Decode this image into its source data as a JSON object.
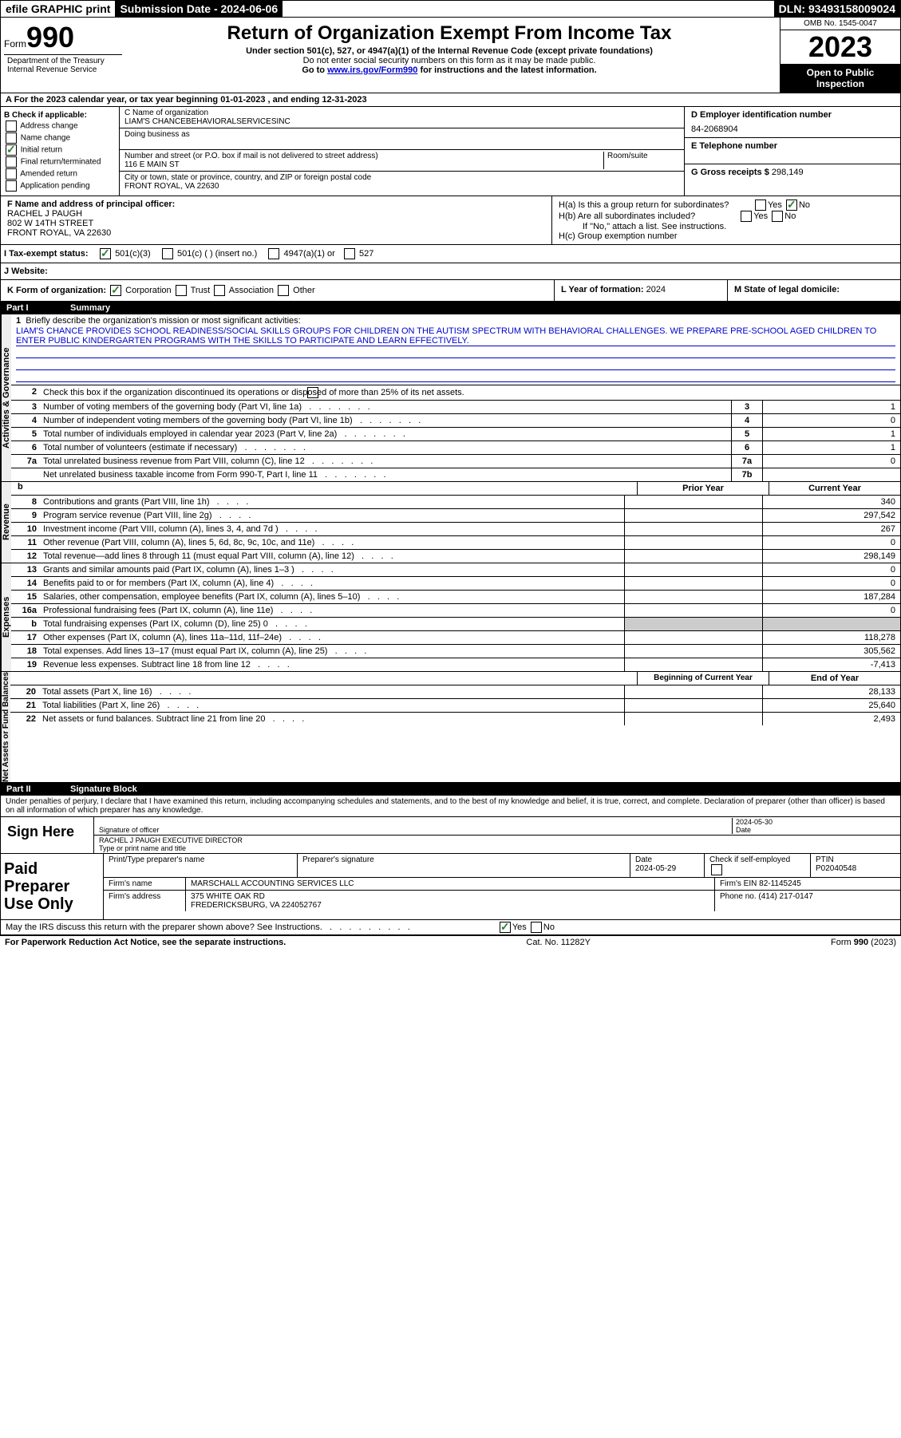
{
  "top": {
    "efile": "efile GRAPHIC print",
    "sub_label": "Submission Date - 2024-06-06",
    "dln": "DLN: 93493158009024"
  },
  "header": {
    "form_word": "Form",
    "form_num": "990",
    "title": "Return of Organization Exempt From Income Tax",
    "sub1": "Under section 501(c), 527, or 4947(a)(1) of the Internal Revenue Code (except private foundations)",
    "sub2": "Do not enter social security numbers on this form as it may be made public.",
    "sub3_pre": "Go to ",
    "sub3_link": "www.irs.gov/Form990",
    "sub3_post": " for instructions and the latest information.",
    "dept": "Department of the Treasury\nInternal Revenue Service",
    "omb": "OMB No. 1545-0047",
    "year": "2023",
    "pub": "Open to Public Inspection"
  },
  "lineA": "A For the 2023 calendar year, or tax year beginning 01-01-2023   , and ending 12-31-2023",
  "colB": {
    "hdr": "B Check if applicable:",
    "items": [
      "Address change",
      "Name change",
      "Initial return",
      "Final return/terminated",
      "Amended return",
      "Application pending"
    ],
    "checked_idx": 2
  },
  "colC": {
    "name_lbl": "C Name of organization",
    "name": "LIAM'S CHANCEBEHAVIORALSERVICESINC",
    "dba_lbl": "Doing business as",
    "addr_lbl": "Number and street (or P.O. box if mail is not delivered to street address)",
    "room_lbl": "Room/suite",
    "addr": "116 E MAIN ST",
    "city_lbl": "City or town, state or province, country, and ZIP or foreign postal code",
    "city": "FRONT ROYAL, VA  22630"
  },
  "colDE": {
    "d_lbl": "D Employer identification number",
    "ein": "84-2068904",
    "e_lbl": "E Telephone number",
    "g_lbl": "G Gross receipts $",
    "g_val": "298,149"
  },
  "rowF": {
    "lbl": "F  Name and address of principal officer:",
    "l1": "RACHEL J PAUGH",
    "l2": "802 W 14TH STREET",
    "l3": "FRONT ROYAL, VA  22630"
  },
  "rowH": {
    "a": "H(a)  Is this a group return for subordinates?",
    "a_no": "No",
    "b": "H(b)  Are all subordinates included?",
    "b_note": "If \"No,\" attach a list. See instructions.",
    "c": "H(c)  Group exemption number"
  },
  "rowI": {
    "lbl": "I   Tax-exempt status:",
    "o1": "501(c)(3)",
    "o2": "501(c) (  ) (insert no.)",
    "o3": "4947(a)(1) or",
    "o4": "527"
  },
  "rowJ": {
    "lbl": "J   Website:"
  },
  "rowK": {
    "lbl": "K Form of organization:",
    "o1": "Corporation",
    "o2": "Trust",
    "o3": "Association",
    "o4": "Other"
  },
  "rowL": {
    "lbl": "L Year of formation:",
    "val": "2024"
  },
  "rowM": {
    "lbl": "M State of legal domicile:"
  },
  "part1": {
    "hdr": "Part I",
    "title": "Summary"
  },
  "summary": {
    "q1": "Briefly describe the organization's mission or most significant activities:",
    "mission": "LIAM'S CHANCE PROVIDES SCHOOL READINESS/SOCIAL SKILLS GROUPS FOR CHILDREN ON THE AUTISM SPECTRUM WITH BEHAVIORAL CHALLENGES. WE PREPARE PRE-SCHOOL AGED CHILDREN TO ENTER PUBLIC KINDERGARTEN PROGRAMS WITH THE SKILLS TO PARTICIPATE AND LEARN EFFECTIVELY.",
    "q2": "Check this box      if the organization discontinued its operations or disposed of more than 25% of its net assets.",
    "rows_gov": [
      {
        "n": "3",
        "t": "Number of voting members of the governing body (Part VI, line 1a)",
        "b": "3",
        "v": "1"
      },
      {
        "n": "4",
        "t": "Number of independent voting members of the governing body (Part VI, line 1b)",
        "b": "4",
        "v": "0"
      },
      {
        "n": "5",
        "t": "Total number of individuals employed in calendar year 2023 (Part V, line 2a)",
        "b": "5",
        "v": "1"
      },
      {
        "n": "6",
        "t": "Total number of volunteers (estimate if necessary)",
        "b": "6",
        "v": "1"
      },
      {
        "n": "7a",
        "t": "Total unrelated business revenue from Part VIII, column (C), line 12",
        "b": "7a",
        "v": "0"
      },
      {
        "n": "",
        "t": "Net unrelated business taxable income from Form 990-T, Part I, line 11",
        "b": "7b",
        "v": ""
      }
    ],
    "hdr_prior": "Prior Year",
    "hdr_curr": "Current Year",
    "rows_rev": [
      {
        "n": "8",
        "t": "Contributions and grants (Part VIII, line 1h)",
        "p": "",
        "c": "340"
      },
      {
        "n": "9",
        "t": "Program service revenue (Part VIII, line 2g)",
        "p": "",
        "c": "297,542"
      },
      {
        "n": "10",
        "t": "Investment income (Part VIII, column (A), lines 3, 4, and 7d )",
        "p": "",
        "c": "267"
      },
      {
        "n": "11",
        "t": "Other revenue (Part VIII, column (A), lines 5, 6d, 8c, 9c, 10c, and 11e)",
        "p": "",
        "c": "0"
      },
      {
        "n": "12",
        "t": "Total revenue—add lines 8 through 11 (must equal Part VIII, column (A), line 12)",
        "p": "",
        "c": "298,149"
      }
    ],
    "rows_exp": [
      {
        "n": "13",
        "t": "Grants and similar amounts paid (Part IX, column (A), lines 1–3 )",
        "p": "",
        "c": "0"
      },
      {
        "n": "14",
        "t": "Benefits paid to or for members (Part IX, column (A), line 4)",
        "p": "",
        "c": "0"
      },
      {
        "n": "15",
        "t": "Salaries, other compensation, employee benefits (Part IX, column (A), lines 5–10)",
        "p": "",
        "c": "187,284"
      },
      {
        "n": "16a",
        "t": "Professional fundraising fees (Part IX, column (A), line 11e)",
        "p": "",
        "c": "0"
      },
      {
        "n": "b",
        "t": "Total fundraising expenses (Part IX, column (D), line 25) 0",
        "p": "shaded",
        "c": "shaded"
      },
      {
        "n": "17",
        "t": "Other expenses (Part IX, column (A), lines 11a–11d, 11f–24e)",
        "p": "",
        "c": "118,278"
      },
      {
        "n": "18",
        "t": "Total expenses. Add lines 13–17 (must equal Part IX, column (A), line 25)",
        "p": "",
        "c": "305,562"
      },
      {
        "n": "19",
        "t": "Revenue less expenses. Subtract line 18 from line 12",
        "p": "",
        "c": "-7,413"
      }
    ],
    "hdr_begin": "Beginning of Current Year",
    "hdr_end": "End of Year",
    "rows_net": [
      {
        "n": "20",
        "t": "Total assets (Part X, line 16)",
        "p": "",
        "c": "28,133"
      },
      {
        "n": "21",
        "t": "Total liabilities (Part X, line 26)",
        "p": "",
        "c": "25,640"
      },
      {
        "n": "22",
        "t": "Net assets or fund balances. Subtract line 21 from line 20",
        "p": "",
        "c": "2,493"
      }
    ]
  },
  "vlabels": {
    "gov": "Activities & Governance",
    "rev": "Revenue",
    "exp": "Expenses",
    "net": "Net Assets or Fund Balances"
  },
  "part2": {
    "hdr": "Part II",
    "title": "Signature Block"
  },
  "perjury": "Under penalties of perjury, I declare that I have examined this return, including accompanying schedules and statements, and to the best of my knowledge and belief, it is true, correct, and complete. Declaration of preparer (other than officer) is based on all information of which preparer has any knowledge.",
  "sign": {
    "left": "Sign Here",
    "sig_lbl": "Signature of officer",
    "date_lbl": "Date",
    "date": "2024-05-30",
    "name": "RACHEL J PAUGH EXECUTIVE DIRECTOR",
    "name_lbl": "Type or print name and title"
  },
  "prep": {
    "left": "Paid Preparer Use Only",
    "pt_lbl": "Print/Type preparer's name",
    "ps_lbl": "Preparer's signature",
    "pd_lbl": "Date",
    "pd": "2024-05-29",
    "ck_lbl": "Check        if self-employed",
    "ptin_lbl": "PTIN",
    "ptin": "P02040548",
    "firm_lbl": "Firm's name",
    "firm": "MARSCHALL ACCOUNTING SERVICES LLC",
    "ein_lbl": "Firm's EIN",
    "ein": "82-1145245",
    "addr_lbl": "Firm's address",
    "addr1": "375 WHITE OAK RD",
    "addr2": "FREDERICKSBURG, VA  224052767",
    "ph_lbl": "Phone no.",
    "ph": "(414) 217-0147"
  },
  "discuss": "May the IRS discuss this return with the preparer shown above? See Instructions.",
  "footer": {
    "l": "For Paperwork Reduction Act Notice, see the separate instructions.",
    "m": "Cat. No. 11282Y",
    "r": "Form 990 (2023)"
  }
}
